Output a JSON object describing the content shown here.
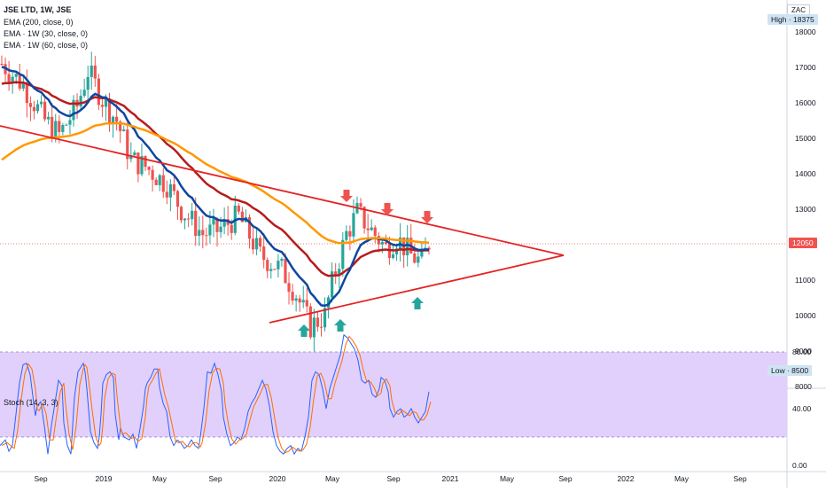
{
  "header": {
    "symbol_line": "JSE LTD, 1W, JSE",
    "indicators": [
      "EMA (200, close, 0)",
      "EMA · 1W (30, close, 0)",
      "EMA · 1W (60, close, 0)"
    ],
    "currency": "ZAC"
  },
  "price_axis": {
    "high_label": "High · 18375",
    "low_label": "Low · 8500",
    "last_price": "12050",
    "ticks": [
      "18000",
      "17000",
      "16000",
      "15000",
      "14000",
      "13000",
      "11000",
      "10000",
      "9000",
      "8000"
    ]
  },
  "stoch": {
    "label": "Stoch (14, 3, 3)",
    "ticks": [
      "80.00",
      "40.00",
      "0.00"
    ],
    "upper_band": 80,
    "lower_band": 20
  },
  "time_axis": {
    "labels": [
      "Sep",
      "2019",
      "May",
      "Sep",
      "2020",
      "May",
      "Sep",
      "2021",
      "May",
      "Sep",
      "2022",
      "May",
      "Sep"
    ]
  },
  "colors": {
    "up": "#26a69a",
    "down": "#ef5350",
    "ema200": "#ff9800",
    "ema30": "#0d47a1",
    "ema60": "#b71c1c",
    "trendline": "#e52222",
    "band_fill": "#e1d0fb",
    "stoch_k": "#2962ff",
    "stoch_d": "#ff6d00"
  },
  "chart_data": {
    "type": "candlestick",
    "title": "JSE LTD, 1W, JSE",
    "ylim": [
      8000,
      18600
    ],
    "x_range": [
      "2018-07",
      "2022-12"
    ],
    "annotations": {
      "down_arrows": [
        "2020-06-01",
        "2020-09-07",
        "2020-11-23"
      ],
      "up_arrows": [
        "2020-03-23",
        "2020-05-11",
        "2020-11-23"
      ],
      "upper_trendline": [
        [
          "2018-08-01",
          15350
        ],
        [
          "2021-09-01",
          11700
        ]
      ],
      "lower_trendline": [
        [
          "2020-02-10",
          9800
        ],
        [
          "2021-09-01",
          11700
        ]
      ]
    }
  }
}
